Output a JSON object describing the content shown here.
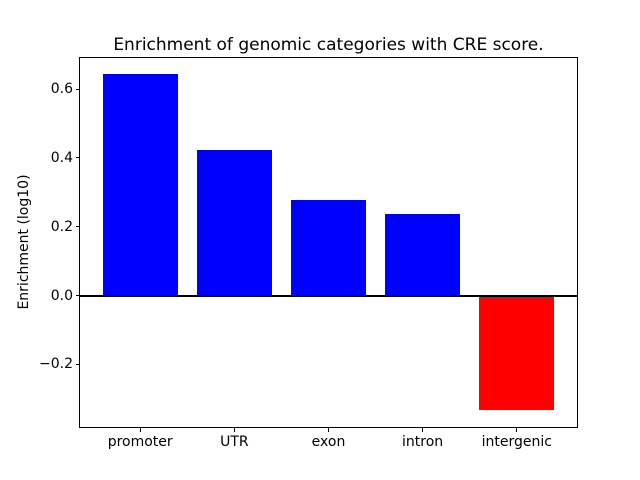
{
  "figure": {
    "background": "#ffffff",
    "text_color": "#000000"
  },
  "chart_data": {
    "type": "bar",
    "title": "Enrichment of genomic categories with CRE score.",
    "ylabel": "Enrichment (log10)",
    "xlabel": "",
    "categories": [
      "promoter",
      "UTR",
      "exon",
      "intron",
      "intergenic"
    ],
    "values": [
      0.643,
      0.422,
      0.279,
      0.238,
      -0.332
    ],
    "bar_colors": [
      "#0000ff",
      "#0000ff",
      "#0000ff",
      "#0000ff",
      "#ff0000"
    ],
    "positive_color": "#0000ff",
    "negative_color": "#ff0000",
    "yticks": [
      {
        "value": 0.6,
        "label": "0.6"
      },
      {
        "value": 0.4,
        "label": "0.4"
      },
      {
        "value": 0.2,
        "label": "0.2"
      },
      {
        "value": 0.0,
        "label": "0.0"
      },
      {
        "value": -0.2,
        "label": "−0.2"
      }
    ],
    "ylim": [
      -0.382,
      0.69
    ],
    "xlim": [
      -0.64,
      4.64
    ],
    "bar_width": 0.8,
    "grid": false,
    "zero_line": true,
    "legend": null
  }
}
